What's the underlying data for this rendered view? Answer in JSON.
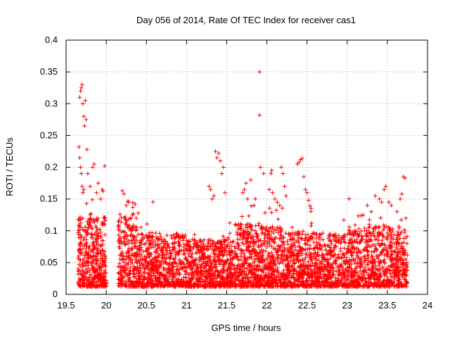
{
  "chart_data": {
    "type": "scatter",
    "title": "Day 056 of 2014, Rate Of TEC Index for receiver cas1",
    "xlabel": "GPS time / hours",
    "ylabel": "ROTI / TECUs",
    "xlim": [
      19.5,
      24
    ],
    "ylim": [
      0,
      0.4
    ],
    "xticks": [
      19.5,
      20,
      20.5,
      21,
      21.5,
      22,
      22.5,
      23,
      23.5,
      24
    ],
    "xtick_labels": [
      "19.5",
      "20",
      "20.5",
      "21",
      "21.5",
      "22",
      "22.5",
      "23",
      "23.5",
      "24"
    ],
    "yticks": [
      0,
      0.05,
      0.1,
      0.15,
      0.2,
      0.25,
      0.3,
      0.35,
      0.4
    ],
    "ytick_labels": [
      "0",
      "0.05",
      "0.1",
      "0.15",
      "0.2",
      "0.25",
      "0.3",
      "0.35",
      "0.4"
    ],
    "grid": true,
    "marker": "+",
    "color": "#ff0000",
    "series": [
      {
        "name": "ROTI cas1",
        "points": [
          [
            19.67,
            0.31
          ],
          [
            19.68,
            0.32
          ],
          [
            19.69,
            0.325
          ],
          [
            19.7,
            0.33
          ],
          [
            19.71,
            0.3
          ],
          [
            19.72,
            0.28
          ],
          [
            19.73,
            0.265
          ],
          [
            19.74,
            0.305
          ],
          [
            19.75,
            0.275
          ],
          [
            19.66,
            0.232
          ],
          [
            19.67,
            0.215
          ],
          [
            19.68,
            0.2
          ],
          [
            19.69,
            0.19
          ],
          [
            19.7,
            0.17
          ],
          [
            19.71,
            0.16
          ],
          [
            19.72,
            0.165
          ],
          [
            19.76,
            0.228
          ],
          [
            19.77,
            0.19
          ],
          [
            19.8,
            0.17
          ],
          [
            19.83,
            0.2
          ],
          [
            19.85,
            0.205
          ],
          [
            19.88,
            0.16
          ],
          [
            19.9,
            0.175
          ],
          [
            19.93,
            0.15
          ],
          [
            19.95,
            0.165
          ],
          [
            19.98,
            0.202
          ],
          [
            20.2,
            0.163
          ],
          [
            20.22,
            0.158
          ],
          [
            20.25,
            0.14
          ],
          [
            20.28,
            0.145
          ],
          [
            20.33,
            0.137
          ],
          [
            20.36,
            0.142
          ],
          [
            21.28,
            0.17
          ],
          [
            21.3,
            0.165
          ],
          [
            21.32,
            0.15
          ],
          [
            21.34,
            0.155
          ],
          [
            21.36,
            0.225
          ],
          [
            21.38,
            0.215
          ],
          [
            21.4,
            0.222
          ],
          [
            21.42,
            0.21
          ],
          [
            21.44,
            0.19
          ],
          [
            21.46,
            0.2
          ],
          [
            21.48,
            0.16
          ],
          [
            21.7,
            0.16
          ],
          [
            21.72,
            0.165
          ],
          [
            21.74,
            0.175
          ],
          [
            21.76,
            0.15
          ],
          [
            21.8,
            0.18
          ],
          [
            21.84,
            0.14
          ],
          [
            21.91,
            0.35
          ],
          [
            21.91,
            0.282
          ],
          [
            21.92,
            0.2
          ],
          [
            21.96,
            0.19
          ],
          [
            22.03,
            0.165
          ],
          [
            22.05,
            0.19
          ],
          [
            22.06,
            0.195
          ],
          [
            22.07,
            0.16
          ],
          [
            22.1,
            0.15
          ],
          [
            22.13,
            0.145
          ],
          [
            22.16,
            0.14
          ],
          [
            22.18,
            0.2
          ],
          [
            22.2,
            0.19
          ],
          [
            22.22,
            0.17
          ],
          [
            22.24,
            0.155
          ],
          [
            22.38,
            0.205
          ],
          [
            22.4,
            0.208
          ],
          [
            22.42,
            0.212
          ],
          [
            22.44,
            0.214
          ],
          [
            22.46,
            0.185
          ],
          [
            22.48,
            0.165
          ],
          [
            22.5,
            0.16
          ],
          [
            22.52,
            0.148
          ],
          [
            22.55,
            0.135
          ],
          [
            23.2,
            0.125
          ],
          [
            23.25,
            0.14
          ],
          [
            23.3,
            0.13
          ],
          [
            23.35,
            0.155
          ],
          [
            23.4,
            0.15
          ],
          [
            23.43,
            0.145
          ],
          [
            23.46,
            0.165
          ],
          [
            23.48,
            0.17
          ],
          [
            23.52,
            0.145
          ],
          [
            23.55,
            0.14
          ],
          [
            23.62,
            0.13
          ],
          [
            23.66,
            0.15
          ],
          [
            23.68,
            0.158
          ],
          [
            23.7,
            0.185
          ],
          [
            23.72,
            0.183
          ],
          [
            23.73,
            0.12
          ]
        ]
      }
    ],
    "notes": "Dense band of ROTI values mostly between 0.01 and 0.10 TECU/min, spanning roughly 19.65–20.0 h and 20.15–23.75 h; additional high-value points listed explicitly."
  }
}
